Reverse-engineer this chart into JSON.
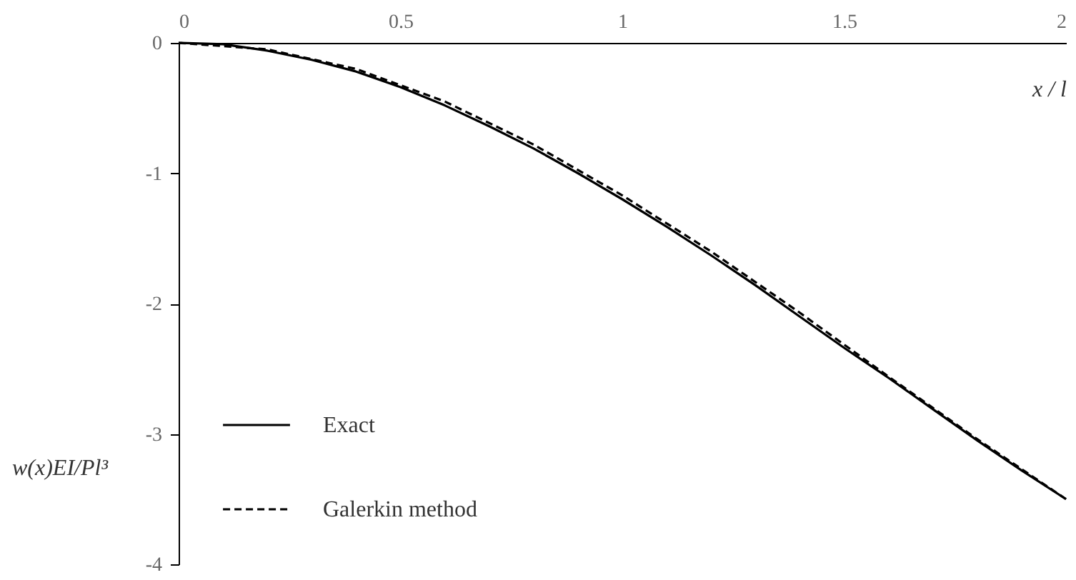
{
  "chart_data": {
    "type": "line",
    "xlabel": "x / l",
    "ylabel": "w(x)EI/Pl³",
    "xlim": [
      0,
      2
    ],
    "xticks": [
      0,
      0.5,
      1,
      1.5,
      2
    ],
    "ylim": [
      -4,
      0
    ],
    "yticks": [
      0,
      -1,
      -2,
      -3,
      -4
    ],
    "legend": "bottom left",
    "grid": false,
    "series": [
      {
        "name": "Exact",
        "color": "#000000",
        "line_style": "solid",
        "x": [
          0,
          0.1,
          0.2,
          0.3,
          0.4,
          0.5,
          0.6,
          0.7,
          0.8,
          0.9,
          1,
          1.1,
          1.2,
          1.3,
          1.4,
          1.5,
          1.6,
          1.7,
          1.8,
          1.9,
          2
        ],
        "values": [
          0,
          -0.01,
          -0.06,
          -0.13,
          -0.22,
          -0.34,
          -0.48,
          -0.64,
          -0.81,
          -1,
          -1.2,
          -1.41,
          -1.63,
          -1.86,
          -2.1,
          -2.34,
          -2.57,
          -2.81,
          -3.05,
          -3.28,
          -3.5
        ]
      },
      {
        "name": "Galerkin method",
        "color": "#000000",
        "line_style": "dashed",
        "x": [
          0,
          0.2,
          0.4,
          0.6,
          0.8,
          1,
          1.2,
          1.4,
          1.6,
          1.8,
          2
        ],
        "values": [
          0,
          -0.05,
          -0.2,
          -0.45,
          -0.78,
          -1.17,
          -1.6,
          -2.07,
          -2.56,
          -3.04,
          -3.5
        ]
      }
    ]
  }
}
